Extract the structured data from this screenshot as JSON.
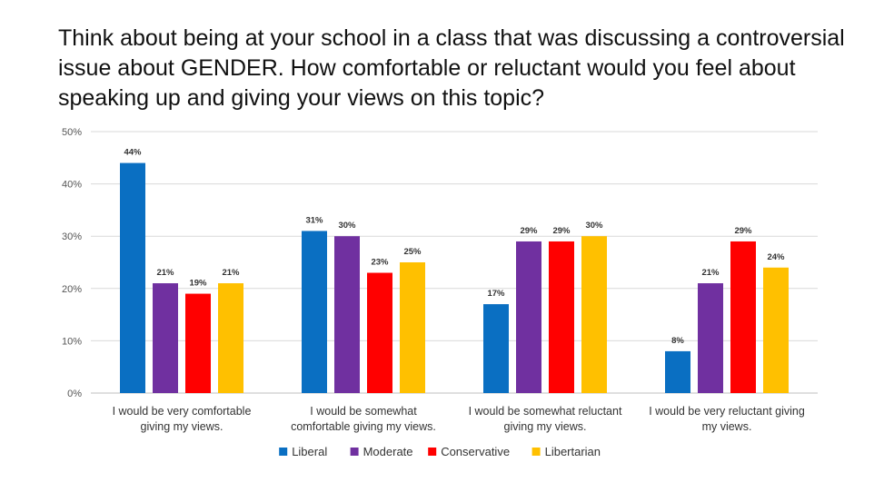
{
  "chart_data": {
    "type": "bar",
    "title": "Think about being at your school in a class that was discussing a controversial issue about GENDER. How comfortable or reluctant would you feel about speaking up and giving your views on this topic?",
    "categories": [
      [
        "I would be very comfortable",
        "giving my views."
      ],
      [
        "I would be somewhat",
        "comfortable giving my views."
      ],
      [
        "I would be somewhat reluctant",
        "giving my views."
      ],
      [
        "I would be very reluctant giving",
        "my views."
      ]
    ],
    "series": [
      {
        "name": "Liberal",
        "color": "#0a6fc2",
        "values": [
          44,
          31,
          17,
          8
        ]
      },
      {
        "name": "Moderate",
        "color": "#7030a0",
        "values": [
          21,
          30,
          29,
          21
        ]
      },
      {
        "name": "Conservative",
        "color": "#ff0000",
        "values": [
          19,
          23,
          29,
          29
        ]
      },
      {
        "name": "Libertarian",
        "color": "#ffc000",
        "values": [
          21,
          25,
          30,
          24
        ]
      }
    ],
    "yticks": [
      "0%",
      "10%",
      "20%",
      "30%",
      "40%",
      "50%"
    ],
    "ylim": [
      0,
      50
    ],
    "value_suffix": "%",
    "legend_position": "bottom",
    "grid": true,
    "xlabel": "",
    "ylabel": ""
  }
}
